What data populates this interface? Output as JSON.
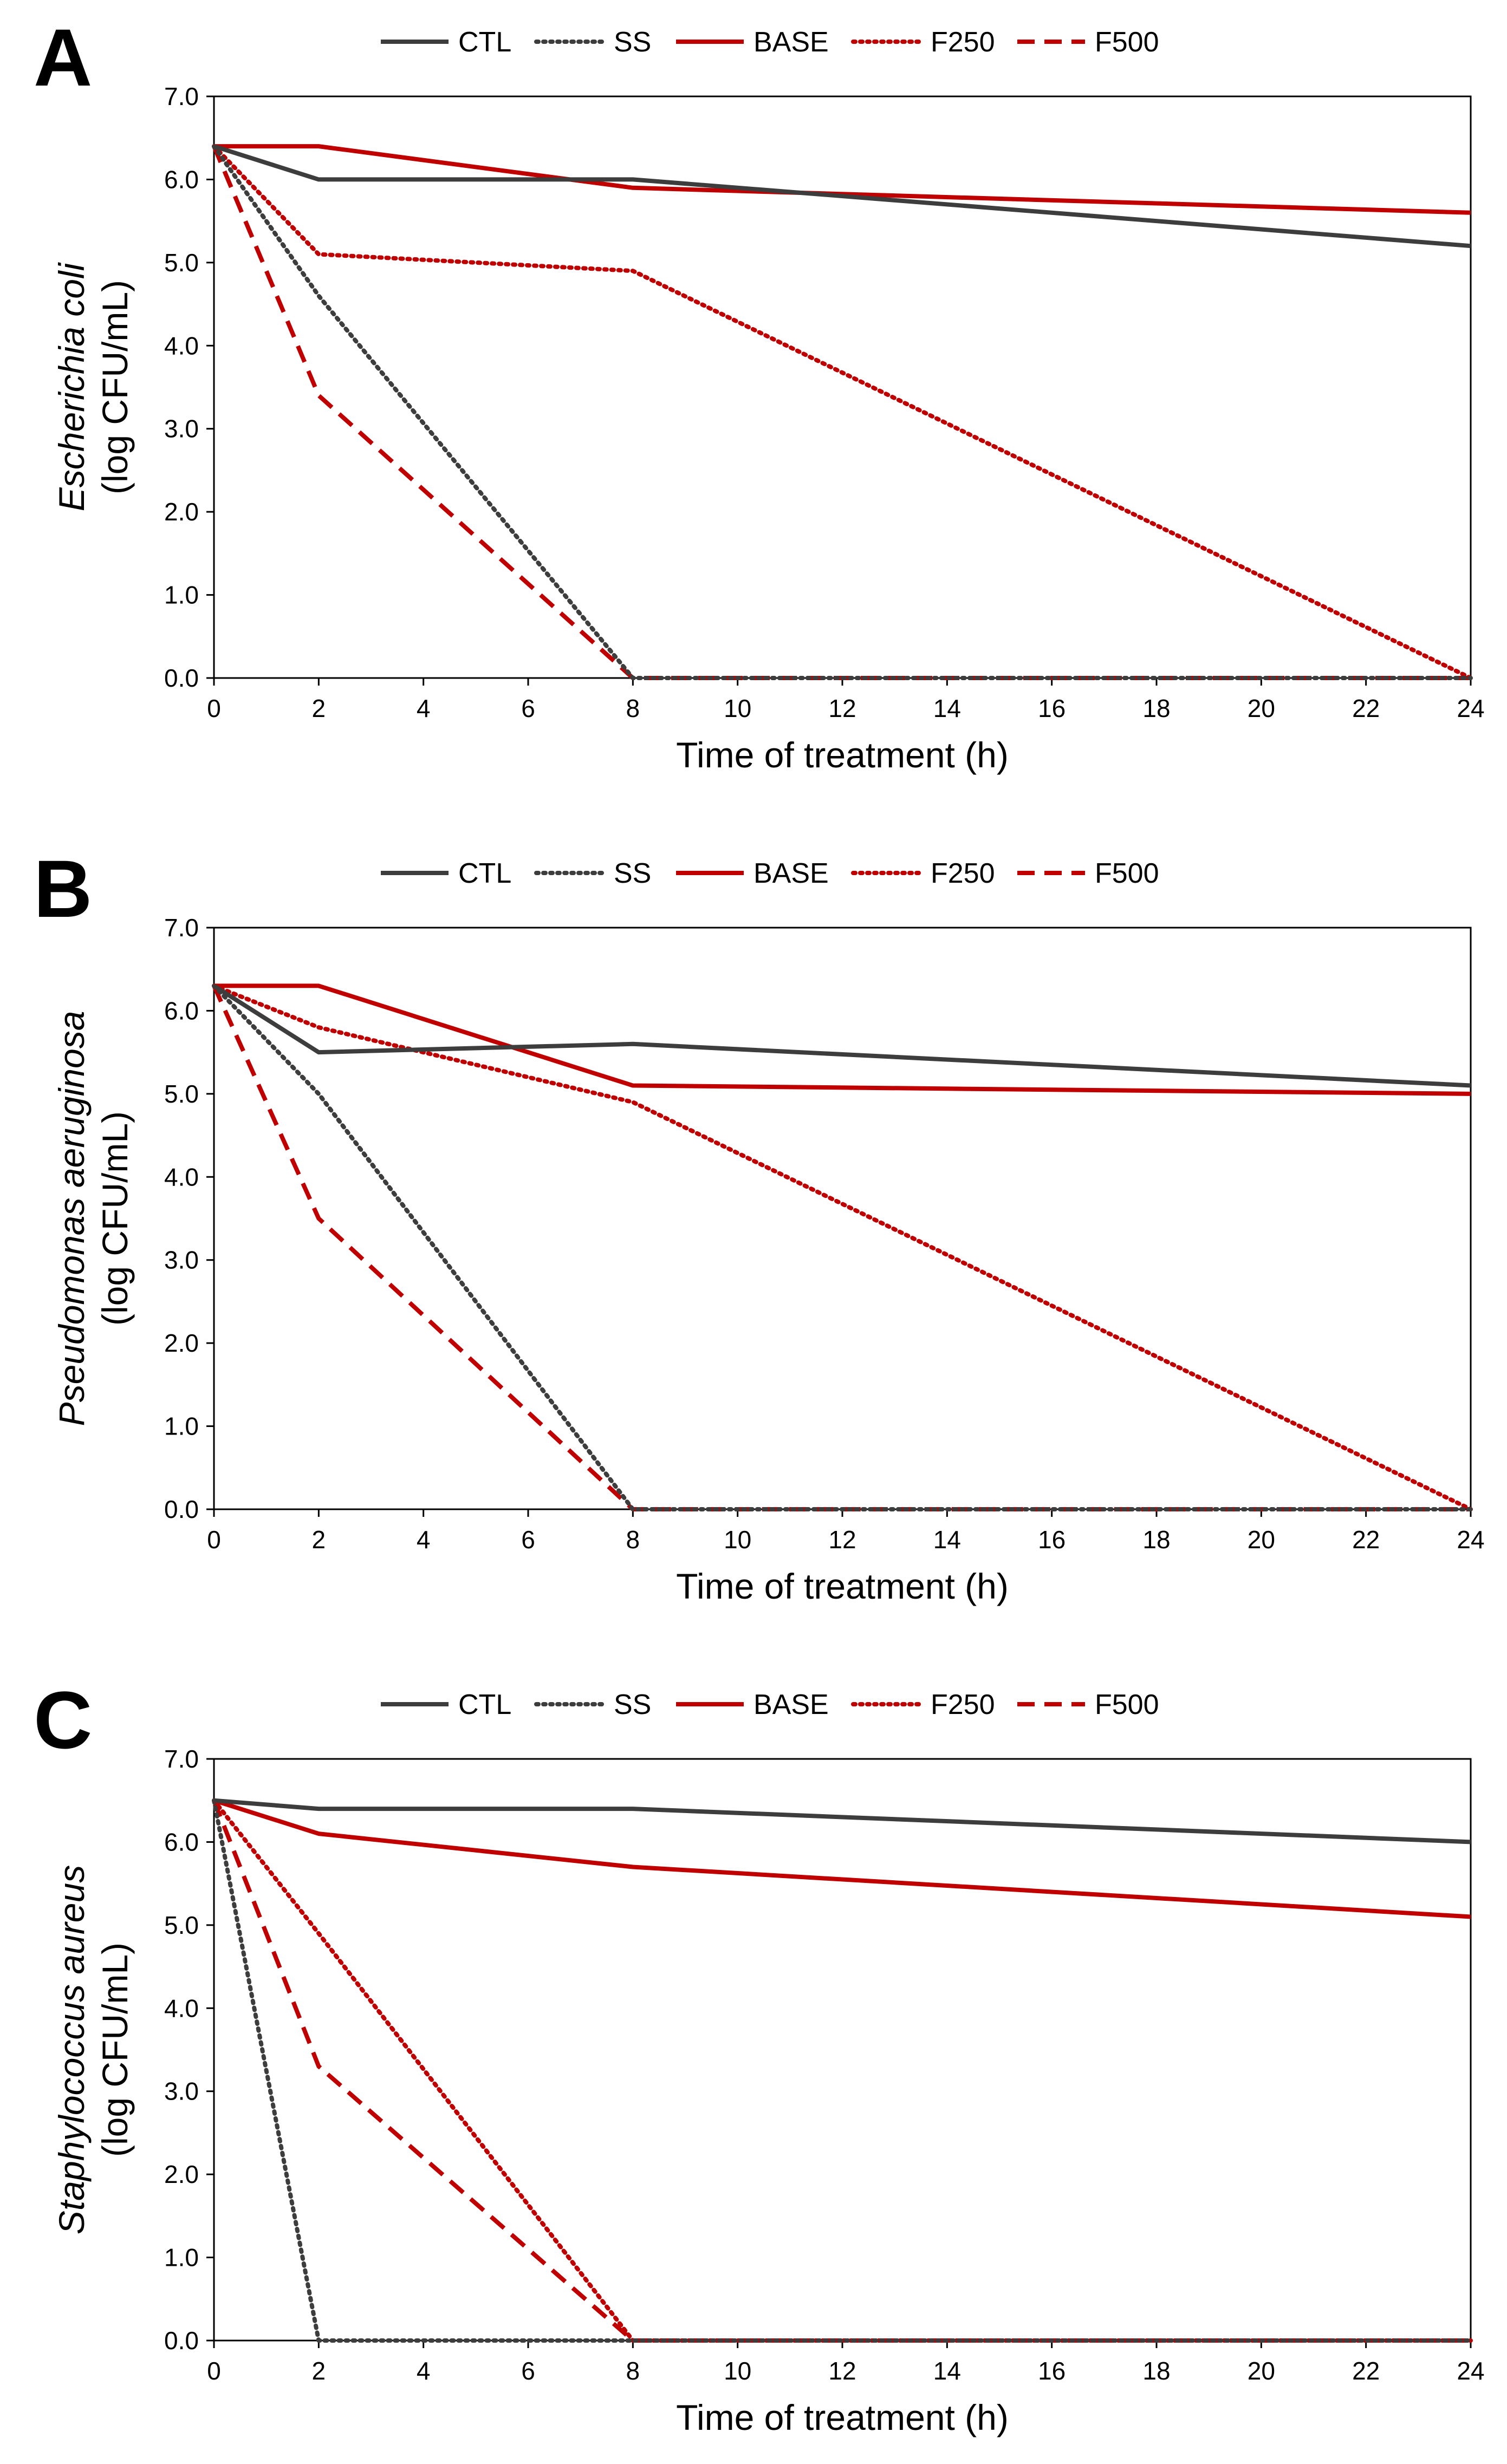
{
  "figure": {
    "legend": [
      {
        "key": "CTL",
        "label": "CTL",
        "color": "#3d3d3d",
        "style": "solid"
      },
      {
        "key": "SS",
        "label": "SS",
        "color": "#3d3d3d",
        "style": "dotted"
      },
      {
        "key": "BASE",
        "label": "BASE",
        "color": "#c00000",
        "style": "solid"
      },
      {
        "key": "F250",
        "label": "F250",
        "color": "#c00000",
        "style": "dotted"
      },
      {
        "key": "F500",
        "label": "F500",
        "color": "#c00000",
        "style": "dashed"
      }
    ]
  },
  "chart_data": [
    {
      "type": "line",
      "panel": "A",
      "title": "",
      "xlabel": "Time of treatment (h)",
      "ylabel_species": "Escherichia coli",
      "ylabel_unit": "(log CFU/mL)",
      "xlim": [
        0,
        24
      ],
      "ylim": [
        0,
        7
      ],
      "xticks": [
        "0",
        "2",
        "4",
        "6",
        "8",
        "10",
        "12",
        "14",
        "16",
        "18",
        "20",
        "22",
        "24"
      ],
      "yticks": [
        "0.0",
        "1.0",
        "2.0",
        "3.0",
        "4.0",
        "5.0",
        "6.0",
        "7.0"
      ],
      "x": [
        0,
        2,
        8,
        24
      ],
      "series": [
        {
          "name": "CTL",
          "values": [
            6.4,
            6.0,
            6.0,
            5.2
          ]
        },
        {
          "name": "SS",
          "values": [
            6.4,
            4.6,
            0.0,
            0.0
          ]
        },
        {
          "name": "BASE",
          "values": [
            6.4,
            6.4,
            5.9,
            5.6
          ]
        },
        {
          "name": "F250",
          "values": [
            6.4,
            5.1,
            4.9,
            0.0
          ]
        },
        {
          "name": "F500",
          "values": [
            6.4,
            3.4,
            0.0,
            0.0
          ]
        }
      ]
    },
    {
      "type": "line",
      "panel": "B",
      "title": "",
      "xlabel": "Time of treatment (h)",
      "ylabel_species": "Pseudomonas aeruginosa",
      "ylabel_unit": "(log CFU/mL)",
      "xlim": [
        0,
        24
      ],
      "ylim": [
        0,
        7
      ],
      "xticks": [
        "0",
        "2",
        "4",
        "6",
        "8",
        "10",
        "12",
        "14",
        "16",
        "18",
        "20",
        "22",
        "24"
      ],
      "yticks": [
        "0.0",
        "1.0",
        "2.0",
        "3.0",
        "4.0",
        "5.0",
        "6.0",
        "7.0"
      ],
      "x": [
        0,
        2,
        8,
        24
      ],
      "series": [
        {
          "name": "CTL",
          "values": [
            6.3,
            5.5,
            5.6,
            5.1
          ]
        },
        {
          "name": "SS",
          "values": [
            6.3,
            5.0,
            0.0,
            0.0
          ]
        },
        {
          "name": "BASE",
          "values": [
            6.3,
            6.3,
            5.1,
            5.0
          ]
        },
        {
          "name": "F250",
          "values": [
            6.3,
            5.8,
            4.9,
            0.0
          ]
        },
        {
          "name": "F500",
          "values": [
            6.3,
            3.5,
            0.0,
            0.0
          ]
        }
      ]
    },
    {
      "type": "line",
      "panel": "C",
      "title": "",
      "xlabel": "Time of treatment (h)",
      "ylabel_species": "Staphylococcus aureus",
      "ylabel_unit": "(log CFU/mL)",
      "xlim": [
        0,
        24
      ],
      "ylim": [
        0,
        7
      ],
      "xticks": [
        "0",
        "2",
        "4",
        "6",
        "8",
        "10",
        "12",
        "14",
        "16",
        "18",
        "20",
        "22",
        "24"
      ],
      "yticks": [
        "0.0",
        "1.0",
        "2.0",
        "3.0",
        "4.0",
        "5.0",
        "6.0",
        "7.0"
      ],
      "x": [
        0,
        2,
        8,
        24
      ],
      "series": [
        {
          "name": "CTL",
          "values": [
            6.5,
            6.4,
            6.4,
            6.0
          ]
        },
        {
          "name": "SS",
          "values": [
            6.5,
            0.0,
            0.0,
            0.0
          ]
        },
        {
          "name": "BASE",
          "values": [
            6.5,
            6.1,
            5.7,
            5.1
          ]
        },
        {
          "name": "F250",
          "values": [
            6.5,
            4.9,
            0.0,
            0.0
          ]
        },
        {
          "name": "F500",
          "values": [
            6.5,
            3.3,
            0.0,
            0.0
          ]
        }
      ]
    }
  ]
}
